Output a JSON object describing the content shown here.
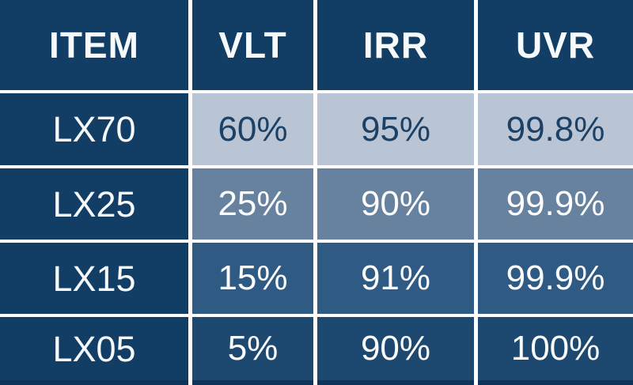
{
  "table": {
    "headers": [
      "ITEM",
      "VLT",
      "IRR",
      "UVR"
    ],
    "rows": [
      {
        "cells": [
          "LX70",
          "60%",
          "95%",
          "99.8%"
        ]
      },
      {
        "cells": [
          "LX25",
          "25%",
          "90%",
          "99.9%"
        ]
      },
      {
        "cells": [
          "LX15",
          "15%",
          "91%",
          "99.9%"
        ]
      },
      {
        "cells": [
          "LX05",
          "5%",
          "90%",
          "100%"
        ]
      }
    ]
  },
  "colors": {
    "header_bg": "#123e66",
    "item_column_bg": "#123e66",
    "row_lx70_bg": "#b9c5d4",
    "row_lx25_bg": "#66829f",
    "row_lx15_bg": "#2f5a83",
    "row_lx05_bg": "#1d4971",
    "grid_line": "#ffffff",
    "bottom_strip": "#0f3459",
    "light_cell_text": "#1c4166",
    "dark_cell_text": "#fdfdfe"
  },
  "chart_data": {
    "type": "table",
    "columns": [
      "ITEM",
      "VLT",
      "IRR",
      "UVR"
    ],
    "rows": [
      [
        "LX70",
        "60%",
        "95%",
        "99.8%"
      ],
      [
        "LX25",
        "25%",
        "90%",
        "99.9%"
      ],
      [
        "LX15",
        "15%",
        "91%",
        "99.9%"
      ],
      [
        "LX05",
        "5%",
        "90%",
        "100%"
      ]
    ],
    "title": "",
    "notes_visible_on_screen": ""
  }
}
